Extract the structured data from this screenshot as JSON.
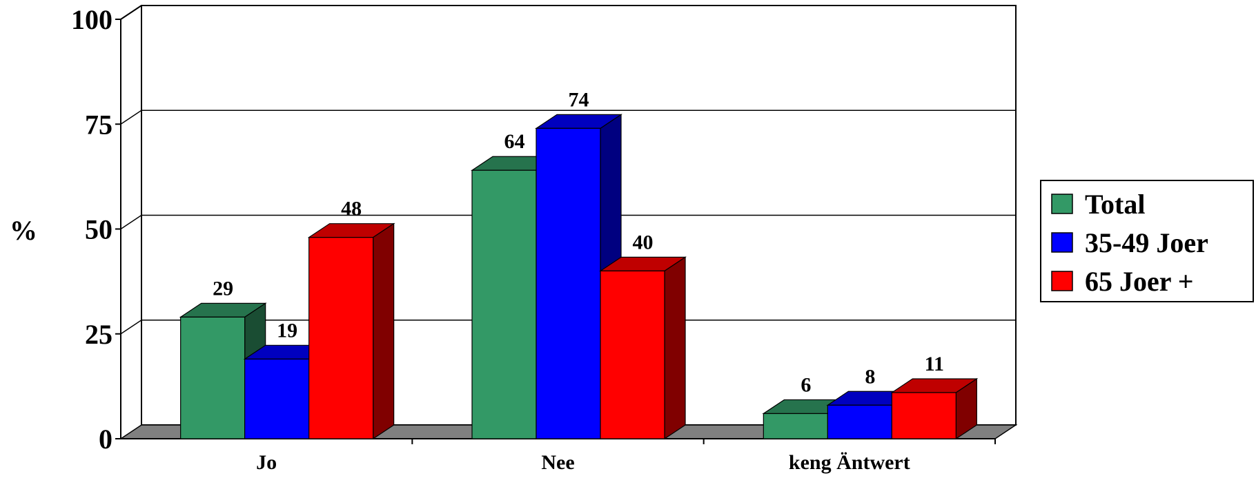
{
  "chart_data": {
    "type": "bar",
    "title": "",
    "xlabel": "",
    "ylabel": "%",
    "ylim": [
      0,
      100
    ],
    "yticks": [
      "0",
      "25",
      "50",
      "75",
      "100"
    ],
    "grid": true,
    "legend_position": "right",
    "categories": [
      "Jo",
      "Nee",
      "keng Äntwert"
    ],
    "series": [
      {
        "name": "Total",
        "values": [
          29,
          64,
          6
        ],
        "color": "#339966"
      },
      {
        "name": "35-49 Joer",
        "values": [
          19,
          74,
          8
        ],
        "color": "#0000ff"
      },
      {
        "name": "65 Joer +",
        "values": [
          48,
          40,
          11
        ],
        "color": "#ff0000"
      }
    ]
  }
}
